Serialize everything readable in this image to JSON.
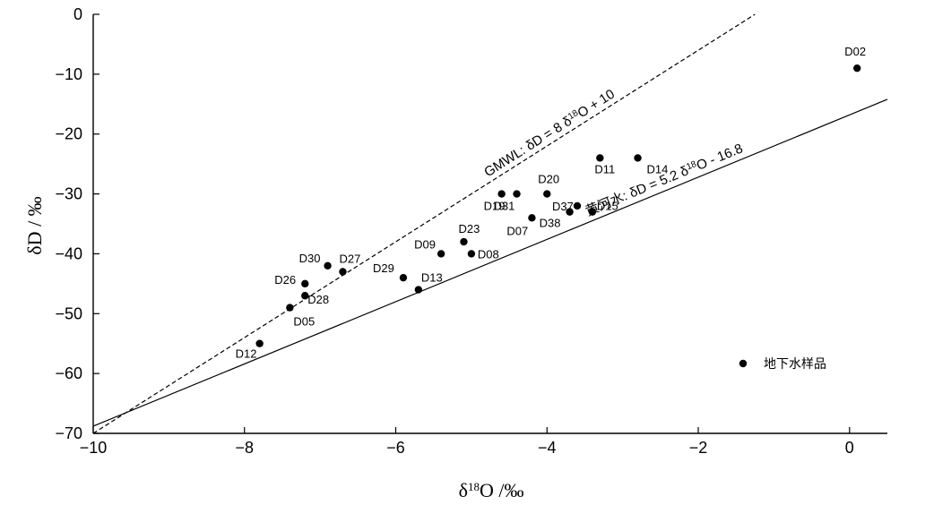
{
  "chart_data": {
    "type": "scatter",
    "xlabel": "δ18O /‰",
    "ylabel": "δD / ‰",
    "xlim": [
      -10,
      0.5
    ],
    "ylim": [
      -70,
      0
    ],
    "x_ticks": [
      -10,
      -8,
      -6,
      -4,
      -2,
      0
    ],
    "y_ticks": [
      0,
      -10,
      -20,
      -30,
      -40,
      -50,
      -60,
      -70
    ],
    "grid": false,
    "legend_position": "bottom-right",
    "series": [
      {
        "name": "地下水样品",
        "color": "#000000",
        "points": [
          {
            "id": "D02",
            "x": 0.1,
            "y": -9
          },
          {
            "id": "D11",
            "x": -3.3,
            "y": -24
          },
          {
            "id": "D14",
            "x": -2.8,
            "y": -24
          },
          {
            "id": "D19",
            "x": -4.6,
            "y": -30
          },
          {
            "id": "D31",
            "x": -4.4,
            "y": -30
          },
          {
            "id": "D20",
            "x": -4.0,
            "y": -30
          },
          {
            "id": "D37",
            "x": -3.6,
            "y": -32
          },
          {
            "id": "D15",
            "x": -3.4,
            "y": -33
          },
          {
            "id": "D38",
            "x": -3.7,
            "y": -33
          },
          {
            "id": "D07",
            "x": -4.2,
            "y": -34
          },
          {
            "id": "D23",
            "x": -5.1,
            "y": -38
          },
          {
            "id": "D09",
            "x": -5.4,
            "y": -40
          },
          {
            "id": "D08",
            "x": -5.0,
            "y": -40
          },
          {
            "id": "D30",
            "x": -6.9,
            "y": -42
          },
          {
            "id": "D27",
            "x": -6.7,
            "y": -43
          },
          {
            "id": "D29",
            "x": -5.9,
            "y": -44
          },
          {
            "id": "D26",
            "x": -7.2,
            "y": -45
          },
          {
            "id": "D13",
            "x": -5.7,
            "y": -46
          },
          {
            "id": "D28",
            "x": -7.2,
            "y": -47
          },
          {
            "id": "D05",
            "x": -7.4,
            "y": -49
          },
          {
            "id": "D12",
            "x": -7.8,
            "y": -55
          }
        ]
      }
    ],
    "lines": [
      {
        "name": "GMWL",
        "label": "GMWL:  δD = 8 δ18O + 10",
        "slope": 8,
        "intercept": 10,
        "style": "dashed"
      },
      {
        "name": "黄河水",
        "label": "黄河水:  δD = 5.2 δ18O - 16.8",
        "slope": 5.2,
        "intercept": -16.8,
        "style": "solid"
      }
    ]
  }
}
